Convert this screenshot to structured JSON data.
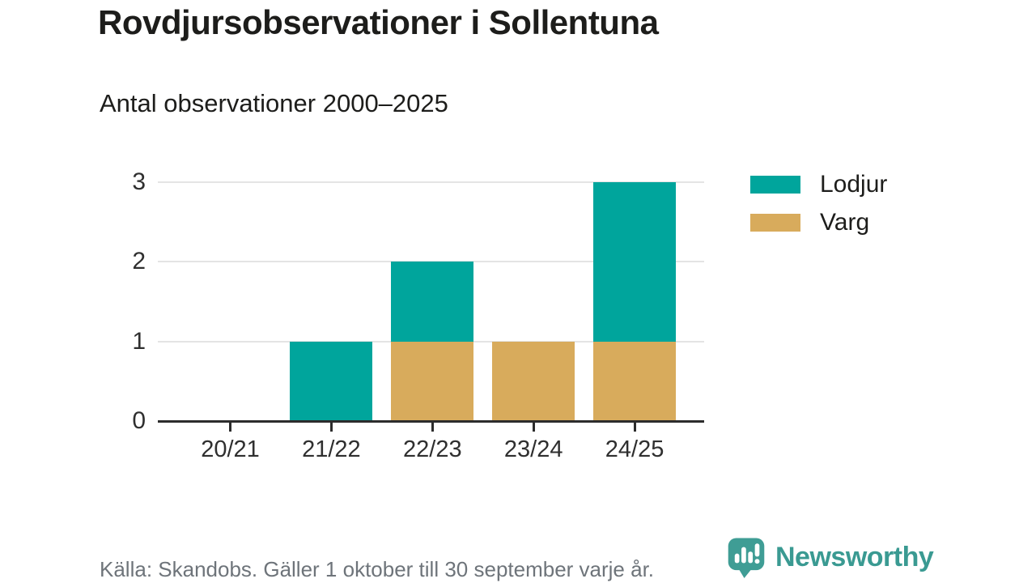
{
  "title": "Rovdjursobservationer i Sollentuna",
  "subtitle": "Antal observationer 2000–2025",
  "source": "Källa: Skandobs. Gäller 1 oktober till 30 september varje år.",
  "brand": {
    "name": "Newsworthy",
    "logo_icon": "newsworthy-speech-bubble-chart-icon",
    "color": "#3f9d95"
  },
  "colors": {
    "lodjur": "#00a59c",
    "varg": "#d8ab5c",
    "gridline": "#e4e4e4",
    "axis": "#2c2c2c",
    "text": "#1d1d1b",
    "muted_text": "#6e747a",
    "brand_teal": "#3a9a92"
  },
  "chart_data": {
    "type": "bar",
    "stacked": true,
    "title": "Rovdjursobservationer i Sollentuna",
    "subtitle": "Antal observationer 2000–2025",
    "xlabel": "",
    "ylabel": "",
    "categories": [
      "20/21",
      "21/22",
      "22/23",
      "23/24",
      "24/25"
    ],
    "series": [
      {
        "name": "Lodjur",
        "color": "#00a59c",
        "values": [
          0,
          1,
          1,
          0,
          2
        ]
      },
      {
        "name": "Varg",
        "color": "#d8ab5c",
        "values": [
          0,
          0,
          1,
          1,
          1
        ]
      }
    ],
    "totals": [
      0,
      1,
      2,
      1,
      3
    ],
    "yticks": [
      0,
      1,
      2,
      3
    ],
    "ylim": [
      0,
      3
    ],
    "grid": "horizontal",
    "legend_position": "top-right",
    "stack_order": [
      "Varg",
      "Lodjur"
    ]
  }
}
